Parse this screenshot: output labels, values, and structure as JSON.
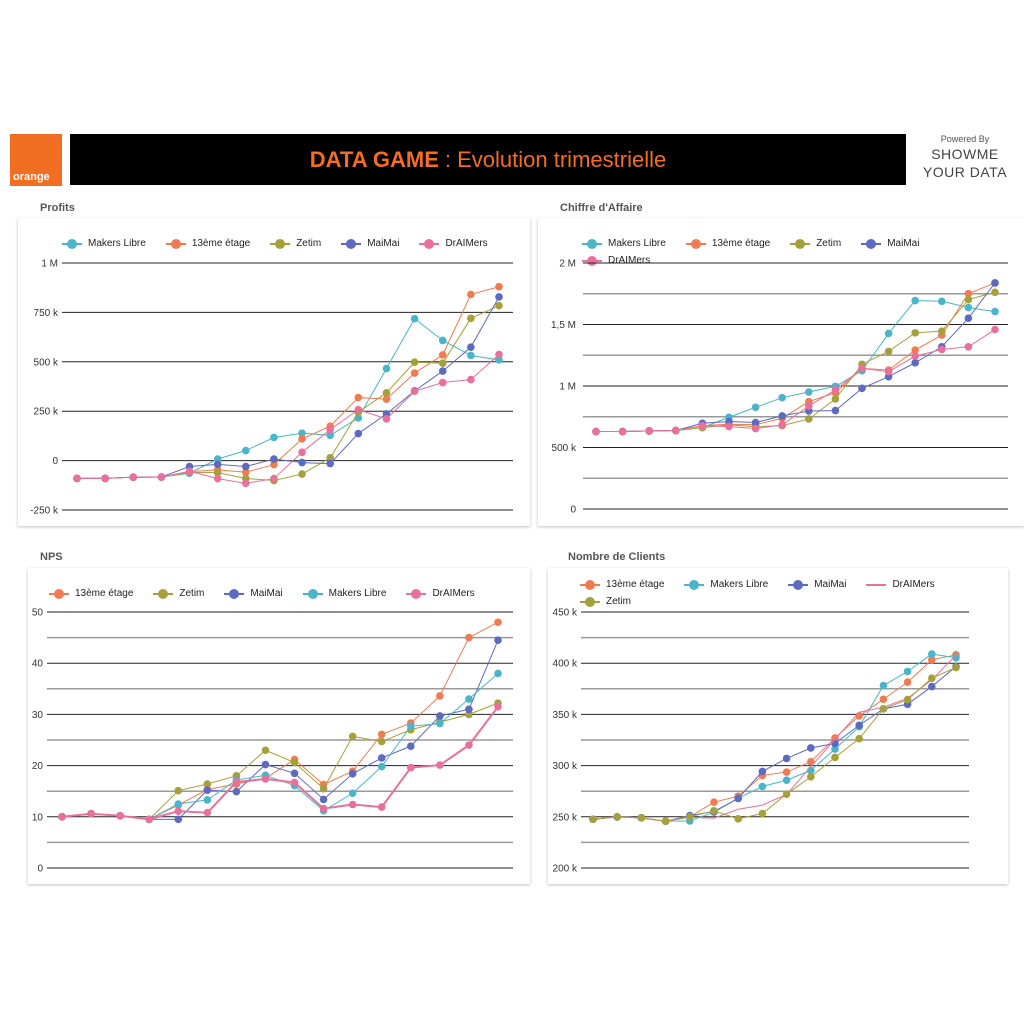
{
  "header": {
    "logo_text": "orange",
    "title_bold": "DATA GAME",
    "title_rest": ": Evolution trimestrielle",
    "powered_by": "Powered By",
    "brand_line1": "SHOWME",
    "brand_line2": "YOUR DATA"
  },
  "colors": {
    "makers_libre": "#4bb4c8",
    "13eme_etage": "#f07b52",
    "zetim": "#a4a03c",
    "maimai": "#5c6bc0",
    "draimers": "#e8709a",
    "accent": "#f16e22"
  },
  "chart_data": [
    {
      "type": "line",
      "title": "Profits",
      "ylim": [
        -250000,
        1000000
      ],
      "grid": true,
      "legend_position": "top",
      "grid_values": [
        -250000,
        0,
        250000,
        500000,
        750000,
        1000000
      ],
      "y_ticks": [
        {
          "value": 1000000,
          "label": "1 M"
        },
        {
          "value": 750000,
          "label": "750 k"
        },
        {
          "value": 500000,
          "label": "500 k"
        },
        {
          "value": 250000,
          "label": "250 k"
        },
        {
          "value": 0,
          "label": "0"
        },
        {
          "value": -250000,
          "label": "-250 k"
        }
      ],
      "series": [
        {
          "name": "Makers Libre",
          "color": "#4bb4c8",
          "markers": true,
          "values": [
            -90000,
            -90000,
            -84000,
            -83000,
            -64000,
            8000,
            51000,
            117000,
            139000,
            128000,
            216000,
            466000,
            718000,
            608000,
            532000,
            510000
          ]
        },
        {
          "name": "13ème étage",
          "color": "#f07b52",
          "markers": true,
          "values": [
            -90000,
            -90000,
            -84000,
            -83000,
            -56000,
            -47000,
            -59000,
            -20000,
            110000,
            174000,
            319000,
            311000,
            443000,
            535000,
            841000,
            880000
          ]
        },
        {
          "name": "Zetim",
          "color": "#a4a03c",
          "markers": true,
          "values": [
            -90000,
            -90000,
            -84000,
            -83000,
            -60000,
            -61000,
            -90000,
            -101000,
            -68000,
            14000,
            245000,
            343000,
            498000,
            493000,
            720000,
            784000
          ]
        },
        {
          "name": "MaiMai",
          "color": "#5c6bc0",
          "markers": true,
          "values": [
            -90000,
            -90000,
            -84000,
            -83000,
            -30000,
            -19000,
            -30000,
            8000,
            -10000,
            -15000,
            137000,
            236000,
            353000,
            453000,
            574000,
            828000
          ]
        },
        {
          "name": "DrAIMers",
          "color": "#e8709a",
          "markers": true,
          "values": [
            -90000,
            -90000,
            -84000,
            -83000,
            -54000,
            -91000,
            -115000,
            -91000,
            42000,
            157000,
            258000,
            211000,
            351000,
            395000,
            410000,
            537000
          ]
        }
      ]
    },
    {
      "type": "line",
      "title": "Chiffre d'Affaire",
      "ylim": [
        0,
        2000000
      ],
      "grid": true,
      "legend_position": "top",
      "grid_values": [
        0,
        250000,
        500000,
        750000,
        1000000,
        1250000,
        1500000,
        1750000,
        2000000
      ],
      "y_ticks": [
        {
          "value": 2000000,
          "label": "2 M"
        },
        {
          "value": 1500000,
          "label": "1,5 M"
        },
        {
          "value": 1000000,
          "label": "1 M"
        },
        {
          "value": 500000,
          "label": "500 k"
        },
        {
          "value": 0,
          "label": "0"
        }
      ],
      "series": [
        {
          "name": "Makers Libre",
          "color": "#4bb4c8",
          "markers": true,
          "values": [
            630000,
            630000,
            635000,
            638000,
            662000,
            746000,
            827000,
            905000,
            951000,
            997000,
            1124000,
            1427000,
            1695000,
            1689000,
            1638000,
            1605000
          ]
        },
        {
          "name": "13ème étage",
          "color": "#f07b52",
          "markers": true,
          "values": [
            630000,
            630000,
            635000,
            638000,
            678000,
            689000,
            686000,
            738000,
            873000,
            946000,
            1143000,
            1130000,
            1292000,
            1414000,
            1751000,
            1838000
          ]
        },
        {
          "name": "Zetim",
          "color": "#a4a03c",
          "markers": true,
          "values": [
            630000,
            630000,
            635000,
            638000,
            662000,
            684000,
            670000,
            678000,
            732000,
            895000,
            1176000,
            1281000,
            1432000,
            1446000,
            1703000,
            1762000
          ]
        },
        {
          "name": "MaiMai",
          "color": "#5c6bc0",
          "markers": true,
          "values": [
            630000,
            630000,
            635000,
            638000,
            697000,
            711000,
            703000,
            757000,
            797000,
            800000,
            981000,
            1076000,
            1189000,
            1319000,
            1551000,
            1838000
          ]
        },
        {
          "name": "DrAIMers",
          "color": "#e8709a",
          "markers": true,
          "values": [
            630000,
            630000,
            635000,
            638000,
            678000,
            670000,
            654000,
            684000,
            838000,
            968000,
            1143000,
            1116000,
            1243000,
            1297000,
            1319000,
            1459000
          ]
        }
      ]
    },
    {
      "type": "line",
      "title": "NPS",
      "ylim": [
        0,
        50
      ],
      "grid": true,
      "legend_position": "top",
      "grid_values": [
        0,
        5,
        10,
        15,
        20,
        25,
        30,
        35,
        40,
        45,
        50
      ],
      "y_ticks": [
        {
          "value": 50,
          "label": "50"
        },
        {
          "value": 40,
          "label": "40"
        },
        {
          "value": 30,
          "label": "30"
        },
        {
          "value": 20,
          "label": "20"
        },
        {
          "value": 10,
          "label": "10"
        },
        {
          "value": 0,
          "label": "0"
        }
      ],
      "series": [
        {
          "name": "13ème étage",
          "color": "#f07b52",
          "markers": true,
          "values": [
            10,
            10.6,
            10.2,
            9.5,
            12.3,
            15.3,
            16.4,
            17.5,
            21.2,
            16.3,
            18.9,
            26.1,
            28.3,
            33.6,
            45.0,
            48.0
          ]
        },
        {
          "name": "Zetim",
          "color": "#a4a03c",
          "markers": true,
          "values": [
            10,
            10.6,
            10.2,
            9.5,
            15.1,
            16.4,
            18.0,
            23.0,
            20.6,
            15.5,
            25.7,
            24.7,
            27.0,
            28.5,
            30.0,
            32.2
          ]
        },
        {
          "name": "MaiMai",
          "color": "#5c6bc0",
          "markers": true,
          "values": [
            10,
            10.6,
            10.2,
            9.5,
            9.5,
            15.2,
            14.9,
            20.2,
            18.5,
            13.4,
            18.4,
            21.5,
            23.8,
            29.7,
            31.0,
            44.5
          ]
        },
        {
          "name": "Makers Libre",
          "color": "#4bb4c8",
          "markers": true,
          "values": [
            10,
            10.6,
            10.2,
            9.5,
            12.5,
            13.3,
            17.2,
            18.1,
            16.1,
            11.2,
            14.6,
            19.8,
            27.7,
            28.2,
            33.0,
            38.0
          ]
        },
        {
          "name": "DrAIMers",
          "color": "#e8709a",
          "markers": true,
          "values": [
            10,
            10.6,
            10.2,
            9.5,
            11.1,
            10.8,
            16.8,
            17.4,
            16.7,
            11.6,
            12.4,
            11.9,
            19.6,
            20.1,
            24.0,
            31.5
          ]
        }
      ]
    },
    {
      "type": "line",
      "title": "Nombre de Clients",
      "ylim": [
        200000,
        450000
      ],
      "grid": true,
      "legend_position": "top",
      "grid_values": [
        200000,
        225000,
        250000,
        275000,
        300000,
        325000,
        350000,
        375000,
        400000,
        425000,
        450000
      ],
      "y_ticks": [
        {
          "value": 450000,
          "label": "450 k"
        },
        {
          "value": 400000,
          "label": "400 k"
        },
        {
          "value": 350000,
          "label": "350 k"
        },
        {
          "value": 300000,
          "label": "300 k"
        },
        {
          "value": 250000,
          "label": "250 k"
        },
        {
          "value": 200000,
          "label": "200 k"
        }
      ],
      "series": [
        {
          "name": "13ème étage",
          "color": "#f07b52",
          "markers": true,
          "values": [
            247600,
            249900,
            249000,
            245700,
            250000,
            264300,
            270200,
            290400,
            293700,
            303800,
            327000,
            348500,
            364800,
            381500,
            403300,
            408200
          ]
        },
        {
          "name": "Makers Libre",
          "color": "#4bb4c8",
          "markers": true,
          "values": [
            247600,
            249900,
            249000,
            245700,
            246000,
            254500,
            268200,
            279600,
            285800,
            295300,
            316200,
            338000,
            378200,
            391900,
            408900,
            405300
          ]
        },
        {
          "name": "MaiMai",
          "color": "#5c6bc0",
          "markers": true,
          "values": [
            247600,
            249900,
            249000,
            245700,
            251200,
            255200,
            267900,
            294300,
            307000,
            317200,
            321700,
            339400,
            355400,
            359900,
            377200,
            396800
          ]
        },
        {
          "name": "DrAIMers",
          "color": "#e8709a",
          "markers": false,
          "values": [
            247600,
            249900,
            249000,
            245700,
            249600,
            248600,
            257400,
            261400,
            271800,
            298900,
            325700,
            352100,
            357000,
            365800,
            383700,
            407900
          ]
        },
        {
          "name": "Zetim",
          "color": "#a4a03c",
          "markers": true,
          "values": [
            247600,
            249900,
            249000,
            245700,
            250000,
            255800,
            248000,
            253200,
            272100,
            289100,
            308000,
            326300,
            355400,
            364500,
            385400,
            395800
          ]
        }
      ]
    }
  ]
}
